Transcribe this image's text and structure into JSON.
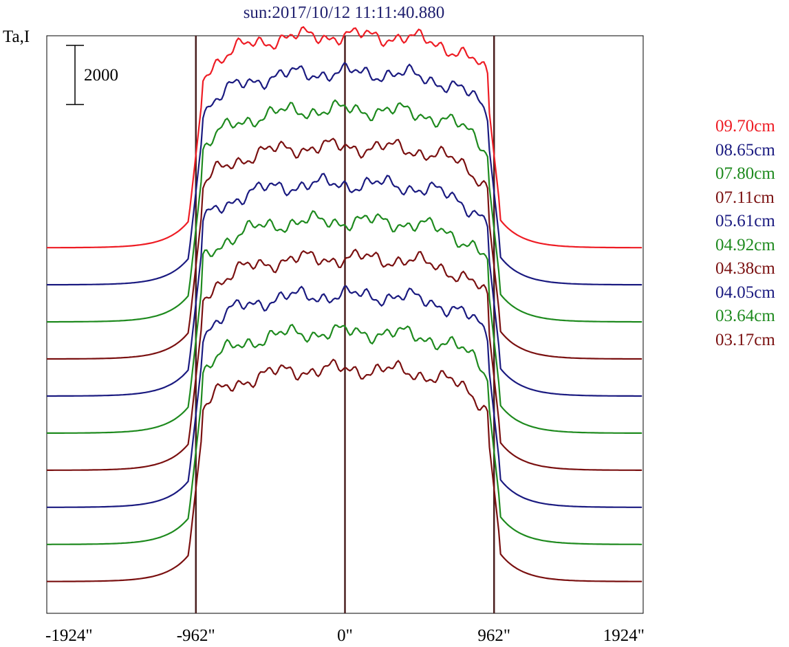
{
  "title": "sun:2017/10/12 11:11:40.880",
  "ylabel": "Ta,I",
  "scale_bar": {
    "label": "2000",
    "value": 2000
  },
  "chart_data": {
    "type": "line",
    "title": "sun:2017/10/12 11:11:40.880",
    "ylabel": "Ta,I",
    "xlabel": "",
    "xlim": [
      -1924,
      1924
    ],
    "x_ticks": [
      {
        "value": -1924,
        "label": "-1924\""
      },
      {
        "value": -962,
        "label": "-962\""
      },
      {
        "value": 0,
        "label": "0\""
      },
      {
        "value": 962,
        "label": "962\""
      },
      {
        "value": 1924,
        "label": "1924\""
      }
    ],
    "vertical_lines": [
      -962,
      0,
      962
    ],
    "vertical_line_color": "#4a1f1f",
    "grid": false,
    "legend_position": "right",
    "profile_shape": {
      "limb_arcsec": 962,
      "disk_height": 2800,
      "plateau_extra": 1200,
      "outside_level": 0
    },
    "series": [
      {
        "name": "09.70cm",
        "color": "#ee1c24",
        "offset": 6300
      },
      {
        "name": "08.65cm",
        "color": "#1a1a80",
        "offset": 5600
      },
      {
        "name": "07.80cm",
        "color": "#1e8a1e",
        "offset": 4900
      },
      {
        "name": "07.11cm",
        "color": "#7a1010",
        "offset": 4200
      },
      {
        "name": "05.61cm",
        "color": "#1a1a80",
        "offset": 3500
      },
      {
        "name": "04.92cm",
        "color": "#1e8a1e",
        "offset": 2800
      },
      {
        "name": "04.38cm",
        "color": "#7a1010",
        "offset": 2100
      },
      {
        "name": "04.05cm",
        "color": "#1a1a80",
        "offset": 1400
      },
      {
        "name": "03.64cm",
        "color": "#1e8a1e",
        "offset": 700
      },
      {
        "name": "03.17cm",
        "color": "#7a1010",
        "offset": 0
      }
    ],
    "ylim": [
      -600,
      10300
    ]
  }
}
